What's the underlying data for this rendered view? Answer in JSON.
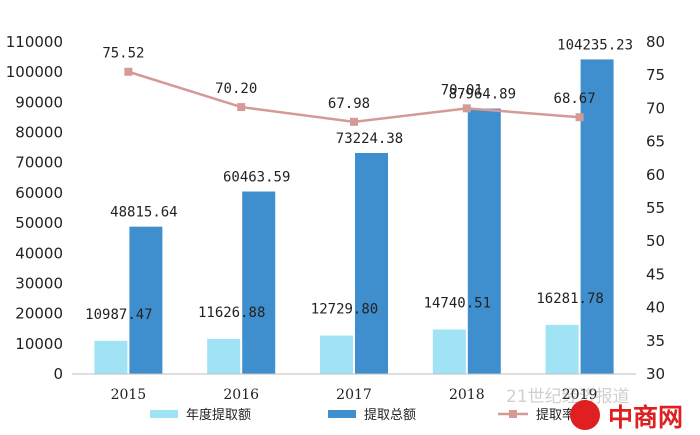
{
  "chart_data": {
    "type": "bar",
    "categories": [
      "2015",
      "2016",
      "2017",
      "2018",
      "2019"
    ],
    "series": [
      {
        "name": "年度提取额",
        "kind": "bar",
        "axis": "left",
        "values": [
          10987.47,
          11626.88,
          12729.8,
          14740.51,
          16281.78
        ],
        "labels": [
          "10987.47",
          "11626.88",
          "12729.80",
          "14740.51",
          "16281.78"
        ],
        "color": "#9fe3f4"
      },
      {
        "name": "提取总额",
        "kind": "bar",
        "axis": "left",
        "values": [
          48815.64,
          60463.59,
          73224.38,
          87964.89,
          104235.23
        ],
        "labels": [
          "48815.64",
          "60463.59",
          "73224.38",
          "87964.89",
          "104235.23"
        ],
        "color": "#3f8fcf"
      },
      {
        "name": "提取率",
        "kind": "line",
        "axis": "right",
        "values": [
          75.52,
          70.2,
          67.98,
          70.01,
          68.67
        ],
        "labels": [
          "75.52",
          "70.20",
          "67.98",
          "70.01",
          "68.67"
        ],
        "color": "#d59a96"
      }
    ],
    "y_left": {
      "min": 0,
      "max": 110000,
      "step": 10000
    },
    "y_right": {
      "min": 30,
      "max": 80,
      "step": 5
    },
    "legend_position": "bottom",
    "grid": false
  },
  "watermark": {
    "site_text": "21世纪经济报道",
    "brand_text": "中商网",
    "brand_color": "#e02020",
    "logo_icon": "zhongshang-logo-icon"
  }
}
